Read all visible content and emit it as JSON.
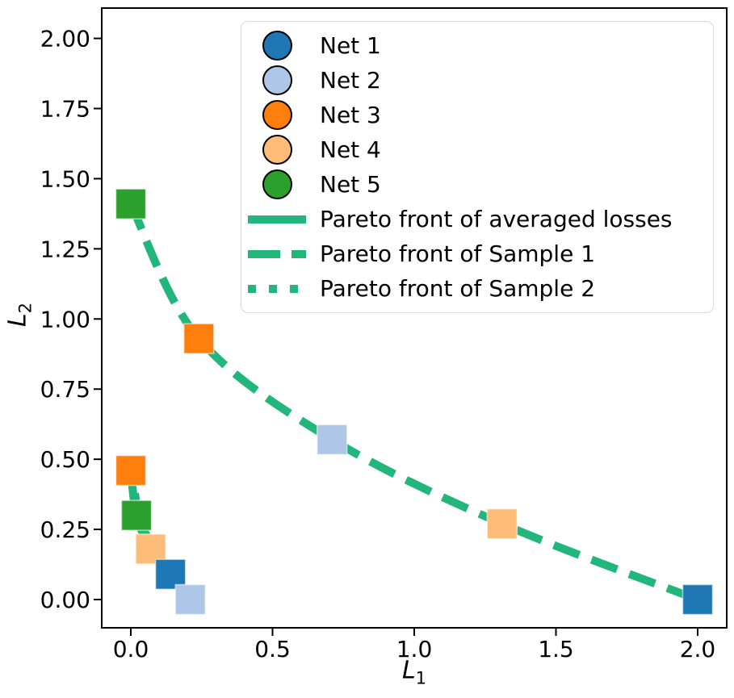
{
  "chart_data": {
    "type": "scatter",
    "title": "",
    "xlabel_main": "L",
    "xlabel_sub": "1",
    "ylabel_main": "L",
    "ylabel_sub": "2",
    "xlim": [
      -0.1026,
      2.1026
    ],
    "ylim": [
      -0.1007,
      2.1081
    ],
    "xticks": [
      0.0,
      0.5,
      1.0,
      1.5,
      2.0
    ],
    "xtick_labels": [
      "0.0",
      "0.5",
      "1.0",
      "1.5",
      "2.0"
    ],
    "yticks": [
      0.0,
      0.25,
      0.5,
      0.75,
      1.0,
      1.25,
      1.5,
      1.75,
      2.0
    ],
    "ytick_labels": [
      "0.00",
      "0.25",
      "0.50",
      "0.75",
      "1.00",
      "1.25",
      "1.50",
      "1.75",
      "2.00"
    ],
    "grid": false,
    "legend_position": "upper right",
    "colors": {
      "net1": "#1f77b4",
      "net2": "#aec7e8",
      "net3": "#ff7f0e",
      "net4": "#ffbb78",
      "net5": "#2ca02c",
      "pareto_line": "#22b57c",
      "frame": "#000000"
    },
    "marker_size_px": 37,
    "series": [
      {
        "name": "Pareto front of averaged losses",
        "kind": "line",
        "style": "solid",
        "color": "#22b57c",
        "points": [
          [
            0.0,
            0.46
          ],
          [
            0.02,
            0.3
          ],
          [
            0.07,
            0.18
          ],
          [
            0.14,
            0.09
          ],
          [
            0.21,
            0.0
          ]
        ]
      },
      {
        "name": "Pareto front of Sample 2",
        "kind": "line",
        "style": "dotted",
        "color": "#22b57c",
        "points": [
          [
            0.004,
            0.444
          ],
          [
            0.033,
            0.287
          ],
          [
            0.086,
            0.172
          ],
          [
            0.152,
            0.082
          ],
          [
            0.218,
            -0.004
          ]
        ]
      },
      {
        "name": "Pareto front of Sample 1",
        "kind": "line",
        "style": "dashed",
        "color": "#22b57c",
        "points": [
          [
            0.0,
            1.41
          ],
          [
            0.24,
            0.93
          ],
          [
            0.71,
            0.57
          ],
          [
            1.31,
            0.27
          ],
          [
            2.0,
            0.0
          ]
        ]
      },
      {
        "name": "Net 3",
        "kind": "scatter",
        "marker": "square",
        "color": "#ff7f0e",
        "points": [
          [
            0.24,
            0.93
          ],
          [
            0.0,
            0.46
          ]
        ]
      },
      {
        "name": "Net 5",
        "kind": "scatter",
        "marker": "square",
        "color": "#2ca02c",
        "points": [
          [
            0.0,
            1.41
          ],
          [
            0.02,
            0.3
          ]
        ]
      },
      {
        "name": "Net 4",
        "kind": "scatter",
        "marker": "square",
        "color": "#ffbb78",
        "points": [
          [
            1.31,
            0.27
          ],
          [
            0.07,
            0.18
          ]
        ]
      },
      {
        "name": "Net 1",
        "kind": "scatter",
        "marker": "square",
        "color": "#1f77b4",
        "points": [
          [
            2.0,
            0.0
          ],
          [
            0.14,
            0.09
          ]
        ]
      },
      {
        "name": "Net 2",
        "kind": "scatter",
        "marker": "square",
        "color": "#aec7e8",
        "points": [
          [
            0.71,
            0.57
          ],
          [
            0.21,
            0.0
          ]
        ]
      }
    ],
    "legend": {
      "items": [
        {
          "label": "Net 1",
          "swatch": "circle",
          "color": "#1f77b4"
        },
        {
          "label": "Net 2",
          "swatch": "circle",
          "color": "#aec7e8"
        },
        {
          "label": "Net 3",
          "swatch": "circle",
          "color": "#ff7f0e"
        },
        {
          "label": "Net 4",
          "swatch": "circle",
          "color": "#ffbb78"
        },
        {
          "label": "Net 5",
          "swatch": "circle",
          "color": "#2ca02c"
        },
        {
          "label": "Pareto front of averaged losses",
          "swatch": "line-solid",
          "color": "#22b57c"
        },
        {
          "label": "Pareto front of Sample 1",
          "swatch": "line-dashed",
          "color": "#22b57c"
        },
        {
          "label": "Pareto front of Sample 2",
          "swatch": "line-dotted",
          "color": "#22b57c"
        }
      ]
    }
  }
}
